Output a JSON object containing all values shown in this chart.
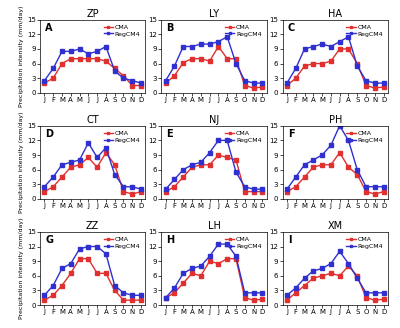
{
  "stations": [
    "ZP",
    "LY",
    "HA",
    "CT",
    "NJ",
    "PH",
    "ZZ",
    "LH",
    "XM"
  ],
  "labels": [
    "A",
    "B",
    "C",
    "D",
    "E",
    "F",
    "G",
    "H",
    "I"
  ],
  "months": [
    "J",
    "F",
    "M",
    "A",
    "M",
    "J",
    "J",
    "A",
    "S",
    "O",
    "N",
    "D"
  ],
  "cma_color": "#e03030",
  "regcm4_color": "#3030d0",
  "ylim": [
    0,
    15
  ],
  "yticks": [
    0,
    3,
    6,
    9,
    12,
    15
  ],
  "ylabel": "Precipitation intensity (mm/day)",
  "cma_data": {
    "ZP": [
      2.0,
      3.0,
      6.0,
      7.0,
      7.0,
      7.0,
      7.0,
      6.5,
      5.0,
      3.5,
      1.5,
      1.5
    ],
    "LY": [
      2.0,
      3.5,
      6.2,
      7.0,
      7.0,
      6.5,
      9.5,
      7.0,
      7.0,
      1.5,
      1.0,
      1.2
    ],
    "HA": [
      1.5,
      3.0,
      5.5,
      6.0,
      6.0,
      6.5,
      9.0,
      9.0,
      6.0,
      1.5,
      1.0,
      1.2
    ],
    "CT": [
      1.5,
      2.5,
      4.5,
      6.5,
      7.0,
      8.5,
      6.5,
      9.5,
      7.0,
      1.5,
      1.0,
      1.5
    ],
    "NJ": [
      1.5,
      2.5,
      4.5,
      6.5,
      7.0,
      7.0,
      9.0,
      8.5,
      8.0,
      1.5,
      1.5,
      1.5
    ],
    "PH": [
      1.5,
      2.5,
      4.5,
      6.5,
      7.0,
      7.0,
      9.5,
      6.5,
      5.0,
      1.5,
      1.0,
      1.5
    ],
    "ZZ": [
      1.0,
      2.0,
      4.0,
      6.5,
      9.5,
      9.5,
      6.5,
      6.5,
      3.0,
      1.0,
      1.0,
      1.0
    ],
    "LH": [
      1.5,
      2.5,
      4.5,
      6.5,
      6.0,
      9.0,
      8.5,
      9.5,
      9.5,
      1.5,
      1.0,
      1.2
    ],
    "XM": [
      1.0,
      2.5,
      4.0,
      5.5,
      6.0,
      6.5,
      6.0,
      8.0,
      6.0,
      1.5,
      1.0,
      1.2
    ]
  },
  "regcm4_data": {
    "ZP": [
      2.5,
      5.0,
      8.5,
      8.5,
      9.0,
      8.0,
      8.5,
      9.5,
      4.5,
      3.0,
      2.5,
      2.0
    ],
    "LY": [
      2.5,
      5.5,
      9.5,
      9.5,
      10.0,
      10.0,
      10.5,
      11.5,
      6.0,
      2.5,
      2.0,
      2.0
    ],
    "HA": [
      2.0,
      5.0,
      9.0,
      9.5,
      10.0,
      9.5,
      10.5,
      11.5,
      5.5,
      2.5,
      2.0,
      2.0
    ],
    "CT": [
      2.5,
      4.5,
      7.0,
      7.5,
      8.0,
      11.5,
      8.5,
      10.5,
      5.0,
      2.5,
      2.5,
      2.0
    ],
    "NJ": [
      2.0,
      4.0,
      6.0,
      7.0,
      7.5,
      9.5,
      12.0,
      12.0,
      5.5,
      2.5,
      2.0,
      2.0
    ],
    "PH": [
      2.0,
      4.5,
      7.0,
      8.0,
      9.0,
      11.0,
      15.0,
      12.0,
      6.0,
      2.5,
      2.5,
      2.5
    ],
    "ZZ": [
      2.0,
      4.0,
      7.5,
      8.5,
      11.5,
      12.0,
      12.0,
      10.5,
      4.0,
      2.5,
      2.0,
      2.0
    ],
    "LH": [
      1.5,
      3.5,
      6.5,
      7.5,
      8.0,
      10.0,
      12.5,
      12.5,
      10.0,
      2.5,
      2.5,
      2.5
    ],
    "XM": [
      2.0,
      3.5,
      5.5,
      7.0,
      7.5,
      8.5,
      11.0,
      8.5,
      5.5,
      2.5,
      2.5,
      2.5
    ]
  }
}
